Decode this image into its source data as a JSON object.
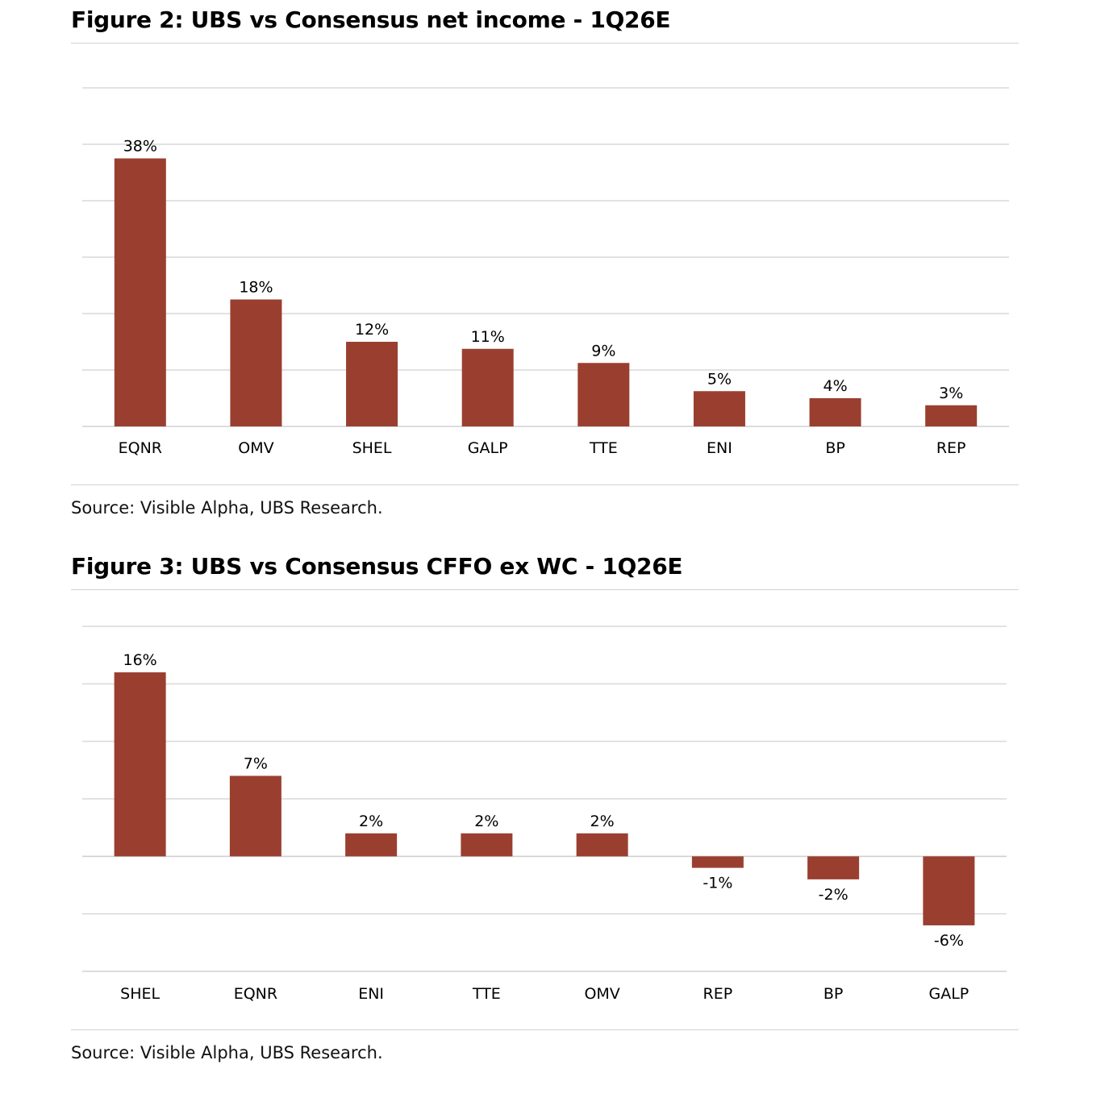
{
  "chart_data": [
    {
      "type": "bar",
      "title": "Figure 2: UBS vs Consensus net income - 1Q26E",
      "categories": [
        "EQNR",
        "OMV",
        "SHEL",
        "GALP",
        "TTE",
        "ENI",
        "BP",
        "REP"
      ],
      "values": [
        38,
        18,
        12,
        11,
        9,
        5,
        4,
        3
      ],
      "data_labels": [
        "38%",
        "18%",
        "12%",
        "11%",
        "9%",
        "5%",
        "4%",
        "3%"
      ],
      "xlabel": "",
      "ylabel": "",
      "ylim": [
        0,
        48
      ],
      "grid_step": 8,
      "grid": true,
      "legend": "none",
      "color": "#9a3f30",
      "source": "Source: Visible Alpha, UBS Research."
    },
    {
      "type": "bar",
      "title": "Figure 3: UBS vs Consensus CFFO ex WC - 1Q26E",
      "categories": [
        "SHEL",
        "EQNR",
        "ENI",
        "TTE",
        "OMV",
        "REP",
        "BP",
        "GALP"
      ],
      "values": [
        16,
        7,
        2,
        2,
        2,
        -1,
        -2,
        -6
      ],
      "data_labels": [
        "16%",
        "7%",
        "2%",
        "2%",
        "2%",
        "-1%",
        "-2%",
        "-6%"
      ],
      "xlabel": "",
      "ylabel": "",
      "ylim": [
        -10,
        20
      ],
      "grid_step": 5,
      "grid": true,
      "legend": "none",
      "color": "#9a3f30",
      "source": "Source: Visible Alpha, UBS Research."
    }
  ]
}
